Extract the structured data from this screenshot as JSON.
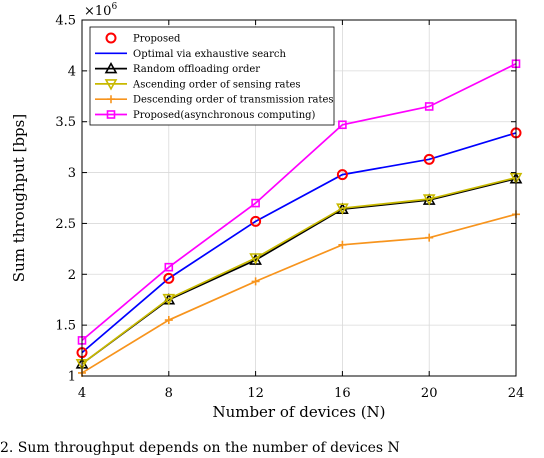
{
  "chart_data": {
    "type": "line",
    "title": "",
    "xlabel": "Number of devices (N)",
    "ylabel": "Sum throughput [bps]",
    "y_multiplier": "×10",
    "y_multiplier_exp": "6",
    "x": [
      4,
      8,
      12,
      16,
      20,
      24
    ],
    "x_ticks": [
      "4",
      "8",
      "12",
      "16",
      "20",
      "24"
    ],
    "y_ticks": [
      "1",
      "1.5",
      "2",
      "2.5",
      "3",
      "3.5",
      "4",
      "4.5"
    ],
    "xlim": [
      4,
      24
    ],
    "ylim": [
      1.0,
      4.5
    ],
    "y_scale_note": "values in units of 10^6 bps",
    "grid": true,
    "legend_position": "top-left",
    "series": [
      {
        "name": "Proposed",
        "color": "#ff0000",
        "marker": "circle",
        "line": false,
        "values": [
          1.23,
          1.96,
          2.52,
          2.98,
          3.13,
          3.39
        ]
      },
      {
        "name": "Optimal via exhaustive search",
        "color": "#0000ff",
        "marker": "none",
        "line": true,
        "values": [
          1.23,
          1.96,
          2.52,
          2.98,
          3.13,
          3.39
        ]
      },
      {
        "name": "Random offloading order",
        "color": "#000000",
        "marker": "triangle-up",
        "line": true,
        "values": [
          1.12,
          1.75,
          2.14,
          2.64,
          2.73,
          2.94
        ]
      },
      {
        "name": "Ascending order of sensing rates",
        "color": "#c8b900",
        "marker": "triangle-down",
        "line": true,
        "values": [
          1.12,
          1.76,
          2.16,
          2.65,
          2.74,
          2.95
        ]
      },
      {
        "name": "Descending order of transmission rates",
        "color": "#f7941d",
        "marker": "plus",
        "line": true,
        "values": [
          1.03,
          1.55,
          1.93,
          2.29,
          2.36,
          2.59
        ]
      },
      {
        "name": "Proposed(asynchronous computing)",
        "color": "#ff00ff",
        "marker": "square",
        "line": true,
        "values": [
          1.35,
          2.07,
          2.7,
          3.47,
          3.65,
          4.07
        ]
      }
    ]
  },
  "caption_fragment": "2.   Sum throughput depends on the number of devices N"
}
